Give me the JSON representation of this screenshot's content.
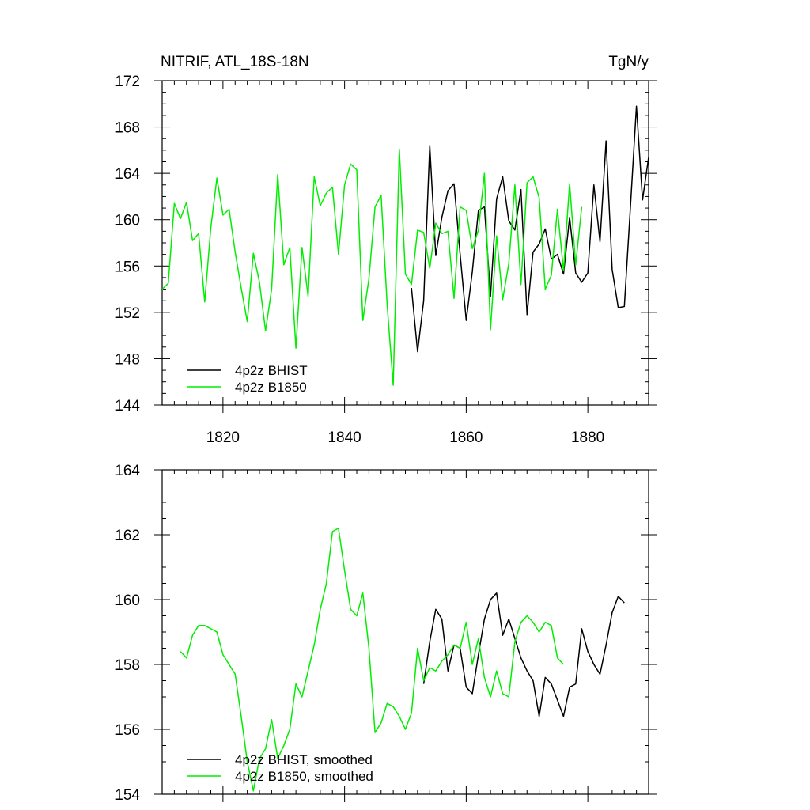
{
  "colors": {
    "BHIST": "#000000",
    "B1850": "#00ee00",
    "axis": "#000000"
  },
  "chart_data": [
    {
      "type": "line",
      "title": "NITRIF, ATL_18S-18N",
      "units_label": "TgN/y",
      "xlabel": "",
      "ylabel": "",
      "xlim": [
        1810,
        1890
      ],
      "ylim": [
        144,
        172
      ],
      "x_ticks": [
        1820,
        1840,
        1860,
        1880
      ],
      "x_tick_labels": [
        "1820",
        "1840",
        "1860",
        "1880"
      ],
      "y_ticks": [
        144,
        148,
        152,
        156,
        160,
        164,
        168,
        172
      ],
      "y_tick_labels": [
        "144",
        "148",
        "152",
        "156",
        "160",
        "164",
        "168",
        "172"
      ],
      "legend_position": "bottom-left",
      "grid": false,
      "series": [
        {
          "name": "4p2z BHIST",
          "color": "#000000",
          "x": [
            1851,
            1852,
            1853,
            1854,
            1855,
            1856,
            1857,
            1858,
            1859,
            1860,
            1861,
            1862,
            1863,
            1864,
            1865,
            1866,
            1867,
            1868,
            1869,
            1870,
            1871,
            1872,
            1873,
            1874,
            1875,
            1876,
            1877,
            1878,
            1879,
            1880,
            1881,
            1882,
            1883,
            1884,
            1885,
            1886,
            1887,
            1888,
            1889,
            1890
          ],
          "y": [
            154.1,
            148.6,
            153.0,
            166.4,
            156.9,
            160.2,
            162.5,
            163.1,
            157.0,
            151.3,
            155.5,
            160.8,
            161.1,
            153.4,
            161.8,
            163.7,
            159.9,
            159.1,
            162.6,
            151.8,
            157.2,
            157.9,
            159.2,
            156.6,
            157.0,
            155.3,
            160.2,
            155.4,
            154.6,
            155.4,
            163.0,
            158.1,
            166.8,
            155.7,
            152.4,
            152.5,
            161.0,
            169.8,
            161.7,
            165.4
          ]
        },
        {
          "name": "4p2z B1850",
          "color": "#00ee00",
          "x": [
            1810,
            1811,
            1812,
            1813,
            1814,
            1815,
            1816,
            1817,
            1818,
            1819,
            1820,
            1821,
            1822,
            1823,
            1824,
            1825,
            1826,
            1827,
            1828,
            1829,
            1830,
            1831,
            1832,
            1833,
            1834,
            1835,
            1836,
            1837,
            1838,
            1839,
            1840,
            1841,
            1842,
            1843,
            1844,
            1845,
            1846,
            1847,
            1848,
            1849,
            1850,
            1851,
            1852,
            1853,
            1854,
            1855,
            1856,
            1857,
            1858,
            1859,
            1860,
            1861,
            1862,
            1863,
            1864,
            1865,
            1866,
            1867,
            1868,
            1869,
            1870,
            1871,
            1872,
            1873,
            1874,
            1875,
            1876,
            1877,
            1878,
            1879,
            1880
          ],
          "y": [
            154.0,
            154.5,
            161.4,
            160.1,
            161.5,
            158.2,
            158.8,
            152.9,
            159.3,
            163.6,
            160.4,
            160.9,
            157.2,
            154.1,
            151.2,
            157.1,
            154.6,
            150.4,
            154.0,
            163.9,
            156.1,
            157.6,
            148.9,
            157.6,
            153.4,
            163.7,
            161.2,
            162.3,
            162.8,
            157.0,
            163.0,
            164.8,
            164.3,
            151.3,
            154.9,
            161.1,
            162.1,
            152.7,
            145.7,
            166.1,
            155.3,
            154.4,
            159.1,
            158.9,
            155.8,
            159.7,
            158.8,
            159.0,
            153.2,
            161.1,
            160.8,
            157.5,
            159.1,
            164.0,
            150.5,
            158.6,
            153.1,
            156.2,
            163.0,
            154.4,
            163.2,
            163.7,
            161.9,
            154.0,
            155.2,
            160.9,
            155.6,
            163.1,
            156.1,
            161.1,
            null
          ]
        }
      ]
    },
    {
      "type": "line",
      "title": "",
      "xlabel": "",
      "ylabel": "",
      "xlim": [
        1810,
        1890
      ],
      "ylim": [
        154,
        164
      ],
      "x_ticks": [
        1820,
        1840,
        1860,
        1880
      ],
      "x_tick_labels": [],
      "y_ticks": [
        154,
        156,
        158,
        160,
        162,
        164
      ],
      "y_tick_labels": [
        "154",
        "156",
        "158",
        "160",
        "162",
        "164"
      ],
      "legend_position": "bottom-left",
      "grid": false,
      "series": [
        {
          "name": "4p2z BHIST, smoothed",
          "color": "#000000",
          "x": [
            1853,
            1854,
            1855,
            1856,
            1857,
            1858,
            1859,
            1860,
            1861,
            1862,
            1863,
            1864,
            1865,
            1866,
            1867,
            1868,
            1869,
            1870,
            1871,
            1872,
            1873,
            1874,
            1875,
            1876,
            1877,
            1878,
            1879,
            1880,
            1881,
            1882,
            1883,
            1884,
            1885,
            1886,
            1887
          ],
          "y": [
            157.4,
            158.7,
            159.7,
            159.4,
            157.8,
            158.6,
            158.5,
            157.3,
            157.1,
            158.3,
            159.4,
            160.0,
            160.2,
            158.9,
            159.4,
            158.8,
            158.2,
            157.8,
            157.5,
            156.4,
            157.6,
            157.4,
            156.9,
            156.4,
            157.3,
            157.4,
            159.1,
            158.4,
            158.0,
            157.7,
            158.6,
            159.6,
            160.1,
            159.9,
            null
          ]
        },
        {
          "name": "4p2z B1850, smoothed",
          "color": "#00ee00",
          "x": [
            1813,
            1814,
            1815,
            1816,
            1817,
            1818,
            1819,
            1820,
            1821,
            1822,
            1823,
            1824,
            1825,
            1826,
            1827,
            1828,
            1829,
            1830,
            1831,
            1832,
            1833,
            1834,
            1835,
            1836,
            1837,
            1838,
            1839,
            1840,
            1841,
            1842,
            1843,
            1844,
            1845,
            1846,
            1847,
            1848,
            1849,
            1850,
            1851,
            1852,
            1853,
            1854,
            1855,
            1856,
            1857,
            1858,
            1859,
            1860,
            1861,
            1862,
            1863,
            1864,
            1865,
            1866,
            1867,
            1868,
            1869,
            1870,
            1871,
            1872,
            1873,
            1874,
            1875,
            1876,
            1877
          ],
          "y": [
            158.4,
            158.2,
            158.9,
            159.2,
            159.2,
            159.1,
            159.0,
            158.3,
            158.0,
            157.7,
            156.4,
            155.0,
            154.1,
            155.1,
            155.4,
            156.3,
            155.1,
            155.5,
            156.0,
            157.4,
            157.0,
            157.8,
            158.6,
            159.7,
            160.5,
            162.1,
            162.2,
            160.9,
            159.7,
            159.5,
            160.2,
            158.5,
            155.9,
            156.2,
            156.8,
            156.7,
            156.4,
            156.0,
            156.5,
            158.5,
            157.5,
            157.9,
            157.8,
            158.1,
            158.3,
            158.6,
            158.5,
            159.3,
            158.0,
            158.8,
            157.6,
            157.0,
            157.8,
            157.1,
            157.0,
            158.7,
            159.3,
            159.5,
            159.3,
            159.0,
            159.3,
            159.2,
            158.2,
            158.0,
            null
          ]
        }
      ]
    }
  ]
}
